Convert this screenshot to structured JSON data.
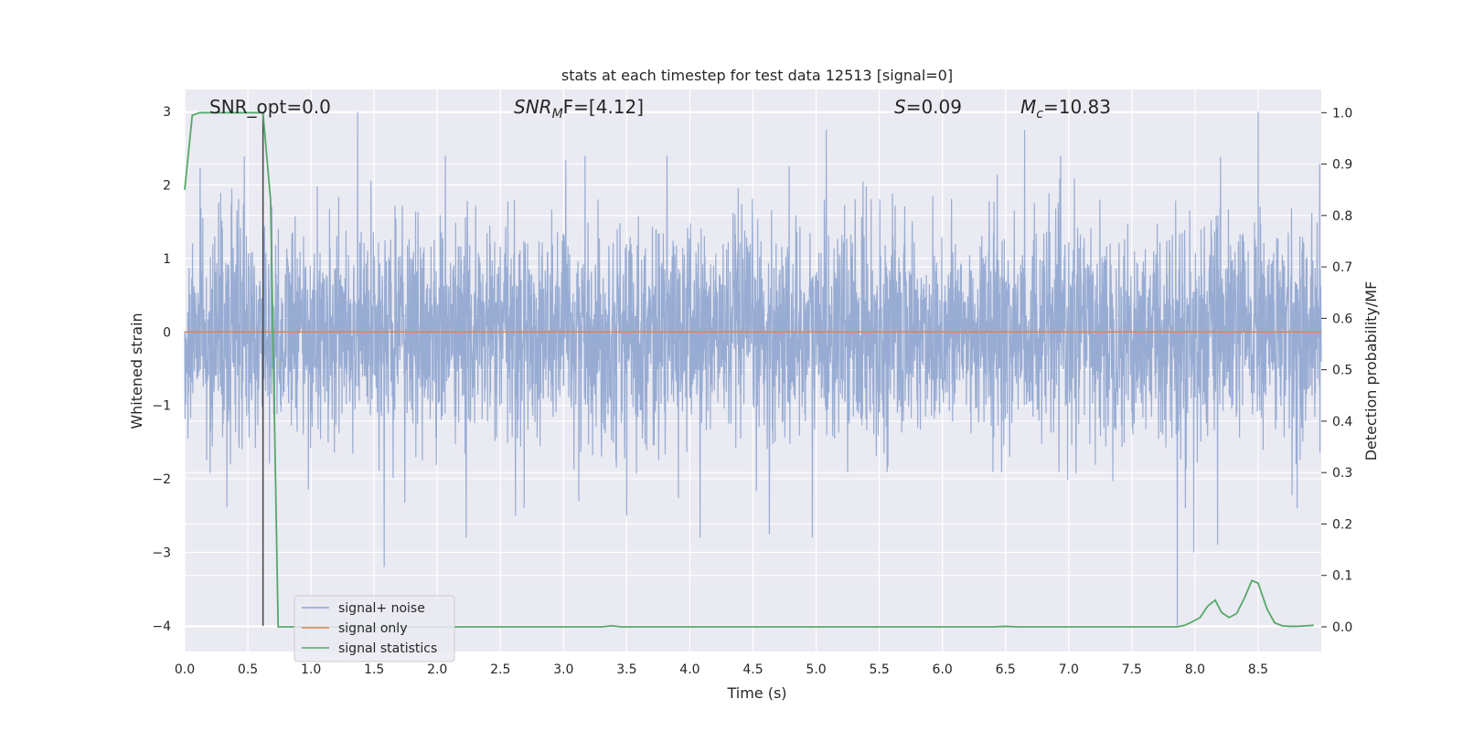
{
  "chart_data": {
    "type": "line",
    "title": "stats at each timestep for test data 12513 [signal=0]",
    "xlabel": "Time (s)",
    "ylabel_left": "Whitened strain",
    "ylabel_right": "Detection probability/MF",
    "xlim": [
      0,
      9.0
    ],
    "ylim_left": [
      -4.35,
      3.3
    ],
    "ylim_right": [
      -0.048,
      1.045
    ],
    "x_ticks": [
      "0.0",
      "0.5",
      "1.0",
      "1.5",
      "2.0",
      "2.5",
      "3.0",
      "3.5",
      "4.0",
      "4.5",
      "5.0",
      "5.5",
      "6.0",
      "6.5",
      "7.0",
      "7.5",
      "8.0",
      "8.5"
    ],
    "x_tick_values": [
      0,
      0.5,
      1,
      1.5,
      2,
      2.5,
      3,
      3.5,
      4,
      4.5,
      5,
      5.5,
      6,
      6.5,
      7,
      7.5,
      8,
      8.5
    ],
    "y_left_ticks": [
      "−4",
      "−3",
      "−2",
      "−1",
      "0",
      "1",
      "2",
      "3"
    ],
    "y_left_tick_values": [
      -4,
      -3,
      -2,
      -1,
      0,
      1,
      2,
      3
    ],
    "y_right_ticks": [
      "0.0",
      "0.1",
      "0.2",
      "0.3",
      "0.4",
      "0.5",
      "0.6",
      "0.7",
      "0.8",
      "0.9",
      "1.0"
    ],
    "y_right_tick_values": [
      0,
      0.1,
      0.2,
      0.3,
      0.4,
      0.5,
      0.6,
      0.7,
      0.8,
      0.9,
      1.0
    ],
    "grid": true,
    "annotations": {
      "snr_opt": "SNR_opt=0.0",
      "snr_mf_main": "SNR",
      "snr_mf_sub": "M",
      "snr_mf_rest": "F=[4.12]",
      "s_main": "S",
      "s_rest": "=0.09",
      "mc_main": "M",
      "mc_sub": "c",
      "mc_rest": "=10.83"
    },
    "vertical_marker_x": 0.62,
    "legend": {
      "placement": "lower-left",
      "entries": [
        "signal+ noise",
        "signal only",
        "signal statistics"
      ]
    },
    "series": [
      {
        "name": "signal+ noise",
        "axis": "left",
        "kind": "noise",
        "color": "#8fa5cf",
        "x_range": [
          0,
          9.0
        ],
        "typical_envelope": [
          -1.5,
          1.5
        ],
        "peaks": [
          {
            "x": 0.63,
            "y": -2.65
          },
          {
            "x": 0.63,
            "y": 1.2
          },
          {
            "x": 1.37,
            "y": 3.0
          },
          {
            "x": 1.58,
            "y": -3.2
          },
          {
            "x": 2.23,
            "y": -2.8
          },
          {
            "x": 2.62,
            "y": -2.5
          },
          {
            "x": 3.12,
            "y": -2.3
          },
          {
            "x": 3.5,
            "y": -2.5
          },
          {
            "x": 4.08,
            "y": -2.8
          },
          {
            "x": 4.63,
            "y": -2.75
          },
          {
            "x": 4.97,
            "y": -2.8
          },
          {
            "x": 5.08,
            "y": 2.75
          },
          {
            "x": 6.65,
            "y": 2.75
          },
          {
            "x": 7.86,
            "y": -4.0
          },
          {
            "x": 7.99,
            "y": -3.0
          },
          {
            "x": 8.18,
            "y": -2.9
          },
          {
            "x": 8.5,
            "y": 3.0
          },
          {
            "x": 8.81,
            "y": -2.4
          }
        ]
      },
      {
        "name": "signal only",
        "axis": "left",
        "color": "#dd8452",
        "x": [
          0,
          9.0
        ],
        "y": [
          0,
          0
        ]
      },
      {
        "name": "signal statistics",
        "axis": "right",
        "color": "#55a868",
        "x": [
          0,
          0.06,
          0.12,
          0.18,
          0.25,
          0.31,
          0.37,
          0.43,
          0.49,
          0.55,
          0.62,
          0.68,
          0.74,
          0.8,
          3.3,
          3.38,
          3.46,
          6.4,
          6.5,
          6.6,
          7.8,
          7.86,
          7.92,
          7.98,
          8.04,
          8.1,
          8.16,
          8.21,
          8.27,
          8.33,
          8.39,
          8.45,
          8.5,
          8.57,
          8.63,
          8.69,
          8.75,
          8.81,
          8.88,
          8.94
        ],
        "y": [
          0.85,
          0.995,
          1.0,
          1.0,
          1.0,
          1.0,
          1.0,
          1.0,
          1.0,
          1.0,
          1.0,
          0.83,
          0.0,
          0.0,
          0.0,
          0.002,
          0.0,
          0.0,
          0.001,
          0.0,
          0.0,
          0.0,
          0.003,
          0.01,
          0.018,
          0.04,
          0.052,
          0.028,
          0.018,
          0.026,
          0.055,
          0.09,
          0.085,
          0.035,
          0.008,
          0.002,
          0.001,
          0.001,
          0.002,
          0.003
        ]
      }
    ]
  }
}
